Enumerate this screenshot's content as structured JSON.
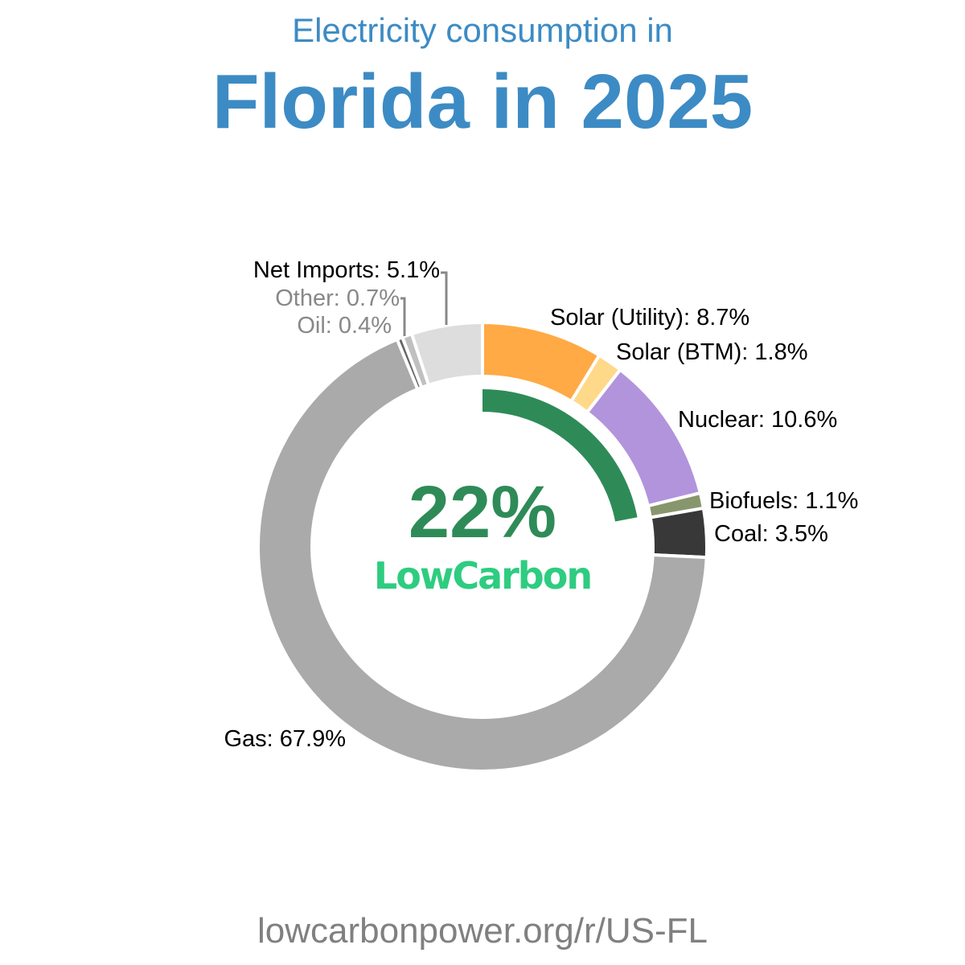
{
  "header": {
    "subtitle": "Electricity consumption in",
    "title": "Florida in 2025"
  },
  "center": {
    "value": "22%",
    "brand": "LowCarbon",
    "low_carbon_share": 0.22,
    "arc_color": "#2e8b57",
    "brand_color": "#2ecc80"
  },
  "footer": {
    "url": "lowcarbonpower.org/r/US-FL"
  },
  "chart_data": {
    "type": "pie",
    "variant": "donut",
    "categories": [
      "Solar (Utility)",
      "Solar (BTM)",
      "Nuclear",
      "Biofuels",
      "Coal",
      "Gas",
      "Oil",
      "Other",
      "Net Imports"
    ],
    "values": [
      8.7,
      1.8,
      10.6,
      1.1,
      3.5,
      67.9,
      0.4,
      0.7,
      5.1
    ],
    "labels": [
      "Solar (Utility): 8.7%",
      "Solar (BTM): 1.8%",
      "Nuclear: 10.6%",
      "Biofuels: 1.1%",
      "Coal: 3.5%",
      "Gas: 67.9%",
      "Oil: 0.4%",
      "Other: 0.7%",
      "Net Imports: 5.1%"
    ],
    "colors": [
      "#ffaa44",
      "#ffd98a",
      "#b294dd",
      "#88966e",
      "#383838",
      "#aaaaaa",
      "#666666",
      "#c0c0c0",
      "#dddddd"
    ],
    "label_colors": [
      "#000000",
      "#000000",
      "#000000",
      "#000000",
      "#000000",
      "#000000",
      "#888888",
      "#888888",
      "#000000"
    ]
  }
}
